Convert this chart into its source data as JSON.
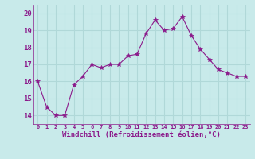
{
  "x": [
    0,
    1,
    2,
    3,
    4,
    5,
    6,
    7,
    8,
    9,
    10,
    11,
    12,
    13,
    14,
    15,
    16,
    17,
    18,
    19,
    20,
    21,
    22,
    23
  ],
  "y": [
    16.0,
    14.5,
    14.0,
    14.0,
    15.8,
    16.3,
    17.0,
    16.8,
    17.0,
    17.0,
    17.5,
    17.6,
    18.8,
    19.6,
    19.0,
    19.1,
    19.8,
    18.7,
    17.9,
    17.3,
    16.7,
    16.5,
    16.3,
    16.3
  ],
  "line_color": "#8b1a8b",
  "marker": "*",
  "marker_size": 4,
  "bg_color": "#c8eaea",
  "grid_color": "#b0d8d8",
  "xlabel": "Windchill (Refroidissement éolien,°C)",
  "xlabel_color": "#8b1a8b",
  "tick_color": "#8b1a8b",
  "ylim": [
    13.5,
    20.5
  ],
  "yticks": [
    14,
    15,
    16,
    17,
    18,
    19,
    20
  ],
  "xlim": [
    -0.5,
    23.5
  ]
}
